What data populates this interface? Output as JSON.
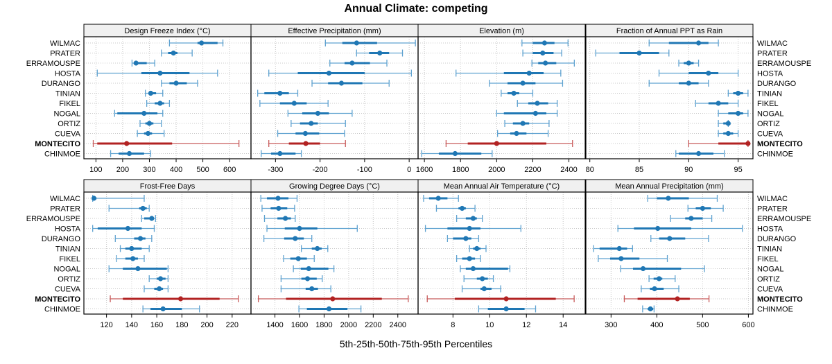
{
  "chart_data": {
    "type": "dotplot-percentile",
    "title": "Annual Climate: competing",
    "xlabel": "5th-25th-50th-75th-95th Percentiles",
    "percentiles": [
      "5th",
      "25th",
      "50th",
      "75th",
      "95th"
    ],
    "categories": [
      "WILMAC",
      "PRATER",
      "ERRAMOUSPE",
      "HOSTA",
      "DURANGO",
      "TINIAN",
      "FIKEL",
      "NOGAL",
      "ORTIZ",
      "CUEVA",
      "MONTECITO",
      "CHINMOE"
    ],
    "highlight": "MONTECITO",
    "colors": {
      "default": "#1f77b4",
      "default_dark": "#0a6fb0",
      "highlight": "#b22222",
      "strip_bg": "#f0f0f0",
      "grid": "#c8c8c8"
    },
    "grid": true,
    "panels": [
      {
        "name": "Design Freeze Index (°C)",
        "xlim": [
          55,
          680
        ],
        "ticks": [
          100,
          200,
          300,
          400,
          500,
          600
        ],
        "series": {
          "WILMAC": [
            375,
            480,
            495,
            555,
            575
          ],
          "PRATER": [
            345,
            370,
            390,
            405,
            460
          ],
          "ERRAMOUSPE": [
            235,
            245,
            250,
            290,
            320
          ],
          "HOSTA": [
            105,
            270,
            340,
            450,
            555
          ],
          "DURANGO": [
            345,
            375,
            400,
            440,
            480
          ],
          "TINIAN": [
            285,
            300,
            305,
            325,
            350
          ],
          "FIKEL": [
            290,
            320,
            340,
            355,
            375
          ],
          "NOGAL": [
            170,
            180,
            280,
            330,
            350
          ],
          "ORTIZ": [
            265,
            285,
            300,
            315,
            345
          ],
          "CUEVA": [
            255,
            280,
            295,
            310,
            355
          ],
          "MONTECITO": [
            90,
            105,
            215,
            385,
            635
          ],
          "CHINMOE": [
            155,
            185,
            225,
            280,
            305
          ]
        }
      },
      {
        "name": "Effective Precipitation (mm)",
        "xlim": [
          -355,
          20
        ],
        "ticks": [
          -300,
          -200,
          -100,
          0
        ],
        "series": {
          "WILMAC": [
            -188,
            -150,
            -118,
            -72,
            14
          ],
          "PRATER": [
            -118,
            -90,
            -66,
            -45,
            -15
          ],
          "ERRAMOUSPE": [
            -178,
            -145,
            -128,
            -88,
            -50
          ],
          "HOSTA": [
            -315,
            -250,
            -180,
            -100,
            5
          ],
          "DURANGO": [
            -218,
            -182,
            -152,
            -105,
            -45
          ],
          "TINIAN": [
            -340,
            -325,
            -290,
            -270,
            -250
          ],
          "FIKEL": [
            -335,
            -290,
            -258,
            -230,
            -182
          ],
          "NOGAL": [
            -272,
            -240,
            -205,
            -180,
            -128
          ],
          "ORTIZ": [
            -265,
            -245,
            -220,
            -205,
            -143
          ],
          "CUEVA": [
            -295,
            -255,
            -233,
            -202,
            -145
          ],
          "MONTECITO": [
            -315,
            -270,
            -232,
            -200,
            -143
          ],
          "CHINMOE": [
            -332,
            -310,
            -290,
            -255,
            -242
          ]
        }
      },
      {
        "name": "Elevation (m)",
        "xlim": [
          1565,
          2490
        ],
        "ticks": [
          1600,
          1800,
          2000,
          2200,
          2400
        ],
        "series": {
          "WILMAC": [
            2140,
            2200,
            2265,
            2320,
            2395
          ],
          "PRATER": [
            2145,
            2200,
            2255,
            2315,
            2360
          ],
          "ERRAMOUSPE": [
            2195,
            2230,
            2270,
            2330,
            2430
          ],
          "HOSTA": [
            1775,
            2040,
            2180,
            2260,
            2355
          ],
          "DURANGO": [
            1960,
            2060,
            2145,
            2215,
            2365
          ],
          "TINIAN": [
            2025,
            2060,
            2095,
            2125,
            2200
          ],
          "FIKEL": [
            2115,
            2175,
            2225,
            2285,
            2335
          ],
          "NOGAL": [
            2000,
            2040,
            2215,
            2275,
            2335
          ],
          "ORTIZ": [
            2045,
            2090,
            2145,
            2180,
            2290
          ],
          "CUEVA": [
            2005,
            2075,
            2110,
            2165,
            2285
          ],
          "MONTECITO": [
            1720,
            1840,
            2000,
            2275,
            2420
          ],
          "CHINMOE": [
            1585,
            1680,
            1770,
            1915,
            1975
          ]
        }
      },
      {
        "name": "Fraction of Annual PPT as Rain",
        "xlim": [
          79.6,
          96.5
        ],
        "ticks": [
          80,
          85,
          90,
          95
        ],
        "series": {
          "WILMAC": [
            86,
            88,
            91,
            92,
            93
          ],
          "PRATER": [
            80.6,
            83,
            85,
            87,
            88
          ],
          "ERRAMOUSPE": [
            89,
            89.5,
            90,
            90.5,
            91
          ],
          "HOSTA": [
            87,
            90,
            92,
            93,
            95
          ],
          "DURANGO": [
            86,
            89,
            90,
            91,
            92
          ],
          "TINIAN": [
            94,
            94.5,
            95,
            95.5,
            96
          ],
          "FIKEL": [
            90.7,
            92,
            93,
            94,
            95
          ],
          "NOGAL": [
            93,
            94,
            95,
            95.5,
            96
          ],
          "ORTIZ": [
            93,
            93.5,
            94,
            94,
            94
          ],
          "CUEVA": [
            93,
            93.5,
            94,
            94.5,
            95
          ],
          "MONTECITO": [
            90,
            93,
            96,
            96,
            96
          ],
          "CHINMOE": [
            88.7,
            89,
            91,
            92.5,
            93.6
          ]
        }
      },
      {
        "name": "Frost-Free Days",
        "xlim": [
          102,
          235
        ],
        "ticks": [
          120,
          140,
          160,
          180,
          200,
          220
        ],
        "series": {
          "WILMAC": [
            109,
            109,
            110,
            112,
            150
          ],
          "PRATER": [
            122,
            146,
            149,
            152,
            154
          ],
          "ERRAMOUSPE": [
            148,
            150,
            156,
            157,
            159
          ],
          "HOSTA": [
            109,
            113,
            137,
            148,
            158
          ],
          "DURANGO": [
            127,
            142,
            147,
            151,
            156
          ],
          "TINIAN": [
            131,
            135,
            140,
            148,
            154
          ],
          "FIKEL": [
            128,
            135,
            141,
            145,
            150
          ],
          "NOGAL": [
            122,
            133,
            145,
            168,
            169
          ],
          "ORTIZ": [
            154,
            160,
            163,
            167,
            169
          ],
          "CUEVA": [
            150,
            158,
            162,
            165,
            169
          ],
          "MONTECITO": [
            123,
            133,
            179,
            210,
            225
          ],
          "CHINMOE": [
            149,
            155,
            165,
            180,
            194
          ]
        }
      },
      {
        "name": "Growing Degree Days (°C)",
        "xlim": [
          1205,
          2565
        ],
        "ticks": [
          1400,
          1600,
          1800,
          2000,
          2200,
          2400
        ],
        "series": {
          "WILMAC": [
            1285,
            1335,
            1425,
            1510,
            1580
          ],
          "PRATER": [
            1295,
            1365,
            1430,
            1500,
            1560
          ],
          "ERRAMOUSPE": [
            1315,
            1420,
            1485,
            1530,
            1565
          ],
          "HOSTA": [
            1335,
            1480,
            1600,
            1745,
            2070
          ],
          "DURANGO": [
            1310,
            1475,
            1565,
            1635,
            1700
          ],
          "TINIAN": [
            1615,
            1700,
            1745,
            1780,
            1830
          ],
          "FIKEL": [
            1470,
            1525,
            1590,
            1660,
            1720
          ],
          "NOGAL": [
            1550,
            1610,
            1675,
            1835,
            1880
          ],
          "ORTIZ": [
            1450,
            1615,
            1665,
            1740,
            1785
          ],
          "CUEVA": [
            1450,
            1650,
            1700,
            1750,
            1855
          ],
          "MONTECITO": [
            1265,
            1490,
            1870,
            2270,
            2485
          ],
          "CHINMOE": [
            1595,
            1660,
            1840,
            1990,
            2100
          ]
        }
      },
      {
        "name": "Mean Annual Air Temperature (°C)",
        "xlim": [
          6.1,
          15.2
        ],
        "ticks": [
          8,
          10,
          12,
          14
        ],
        "series": {
          "WILMAC": [
            6.4,
            6.7,
            7.2,
            7.7,
            8.3
          ],
          "PRATER": [
            7.1,
            8.3,
            8.5,
            8.7,
            9.2
          ],
          "ERRAMOUSPE": [
            8.2,
            8.7,
            9.1,
            9.3,
            9.6
          ],
          "HOSTA": [
            6.5,
            7.7,
            8.9,
            9.5,
            11.7
          ],
          "DURANGO": [
            7.7,
            8.0,
            8.7,
            9.0,
            9.4
          ],
          "TINIAN": [
            8.9,
            9.1,
            9.3,
            9.5,
            9.8
          ],
          "FIKEL": [
            8.2,
            8.5,
            8.9,
            9.2,
            9.5
          ],
          "NOGAL": [
            8.4,
            8.7,
            9.1,
            11.0,
            11.1
          ],
          "ORTIZ": [
            8.6,
            9.3,
            9.6,
            9.9,
            10.2
          ],
          "CUEVA": [
            8.5,
            9.5,
            9.7,
            10.1,
            10.6
          ],
          "MONTECITO": [
            6.6,
            8.1,
            10.9,
            13.6,
            14.6
          ],
          "CHINMOE": [
            9.4,
            9.9,
            10.9,
            11.9,
            12.5
          ]
        }
      },
      {
        "name": "Mean Annual Precipitation (mm)",
        "xlim": [
          245,
          610
        ],
        "ticks": [
          300,
          400,
          500,
          600
        ],
        "series": {
          "WILMAC": [
            380,
            400,
            425,
            470,
            532
          ],
          "PRATER": [
            468,
            485,
            500,
            518,
            545
          ],
          "ERRAMOUSPE": [
            430,
            462,
            475,
            500,
            520
          ],
          "HOSTA": [
            315,
            350,
            402,
            475,
            587
          ],
          "DURANGO": [
            387,
            405,
            428,
            462,
            513
          ],
          "TINIAN": [
            262,
            275,
            318,
            335,
            347
          ],
          "FIKEL": [
            272,
            298,
            322,
            362,
            423
          ],
          "NOGAL": [
            321,
            348,
            370,
            453,
            504
          ],
          "ORTIZ": [
            383,
            393,
            405,
            412,
            440
          ],
          "CUEVA": [
            366,
            385,
            395,
            415,
            448
          ],
          "MONTECITO": [
            329,
            358,
            445,
            472,
            514
          ],
          "CHINMOE": [
            369,
            380,
            386,
            392,
            394
          ]
        }
      }
    ]
  }
}
